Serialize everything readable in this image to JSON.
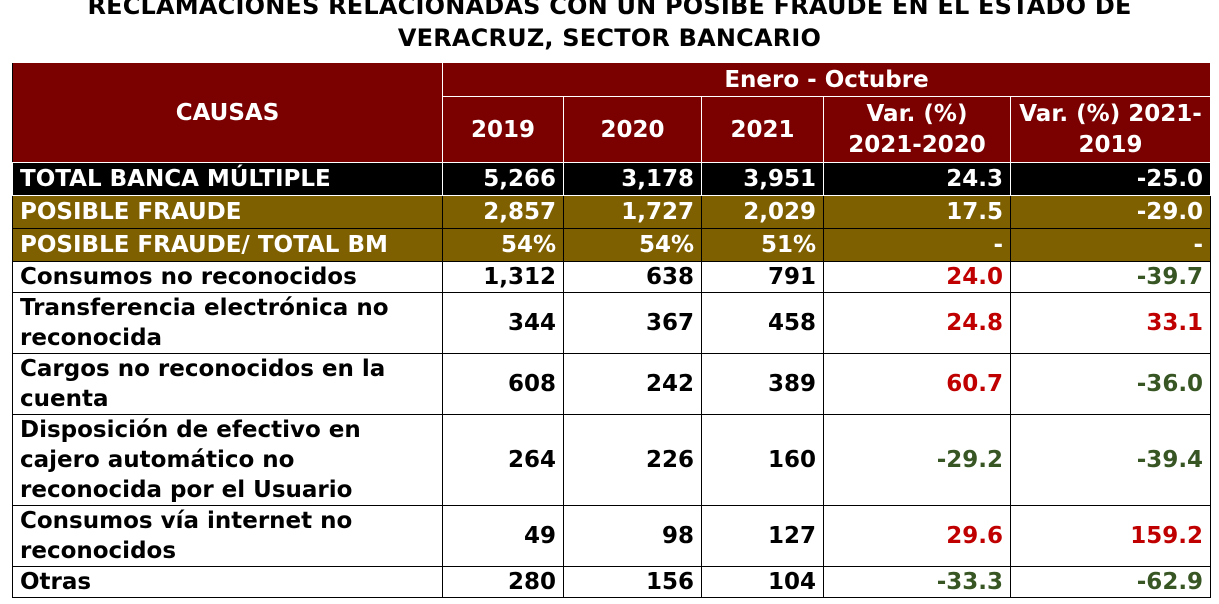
{
  "title_line1": "RECLAMACIONES RELACIONADAS CON UN POSIBE FRAUDE EN EL ESTADO DE",
  "title_line2": "VERACRUZ, SECTOR BANCARIO",
  "header": {
    "causas": "CAUSAS",
    "period": "Enero - Octubre",
    "y2019": "2019",
    "y2020": "2020",
    "y2021": "2021",
    "var_2021_2020_l1": "Var. (%)",
    "var_2021_2020_l2": "2021-2020",
    "var_2021_2019_l1": "Var. (%) 2021-",
    "var_2021_2019_l2": "2019"
  },
  "colors": {
    "header_bg": "#7b0000",
    "total_bg": "#000000",
    "fraude_bg": "#7f6000",
    "positive_var": "#c00000",
    "negative_var": "#375623"
  },
  "total": {
    "label": "TOTAL BANCA MÚLTIPLE",
    "v2019": "5,266",
    "v2020": "3,178",
    "v2021": "3,951",
    "var_21_20": "24.3",
    "var_21_19": "-25.0"
  },
  "posible_fraude": {
    "label": "POSIBLE FRAUDE",
    "v2019": "2,857",
    "v2020": "1,727",
    "v2021": "2,029",
    "var_21_20": "17.5",
    "var_21_19": "-29.0"
  },
  "ratio": {
    "label": "POSIBLE FRAUDE/ TOTAL BM",
    "v2019": "54%",
    "v2020": "54%",
    "v2021": "51%",
    "var_21_20": "-",
    "var_21_19": "-"
  },
  "causes": [
    {
      "label": "Consumos no reconocidos",
      "v2019": "1,312",
      "v2020": "638",
      "v2021": "791",
      "var_21_20": "24.0",
      "var_21_19": "-39.7"
    },
    {
      "label": "Transferencia electrónica no reconocida",
      "v2019": "344",
      "v2020": "367",
      "v2021": "458",
      "var_21_20": "24.8",
      "var_21_19": "33.1"
    },
    {
      "label": "Cargos no reconocidos en la cuenta",
      "v2019": "608",
      "v2020": "242",
      "v2021": "389",
      "var_21_20": "60.7",
      "var_21_19": "-36.0"
    },
    {
      "label": "Disposición de efectivo en cajero automático no reconocida por el Usuario",
      "v2019": "264",
      "v2020": "226",
      "v2021": "160",
      "var_21_20": "-29.2",
      "var_21_19": "-39.4"
    },
    {
      "label": "Consumos vía internet no reconocidos",
      "v2019": "49",
      "v2020": "98",
      "v2021": "127",
      "var_21_20": "29.6",
      "var_21_19": "159.2"
    },
    {
      "label": "Otras",
      "v2019": "280",
      "v2020": "156",
      "v2021": "104",
      "var_21_20": "-33.3",
      "var_21_19": "-62.9"
    }
  ]
}
